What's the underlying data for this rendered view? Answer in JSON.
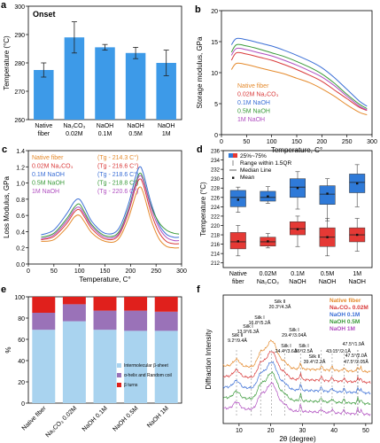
{
  "chart_data": [
    {
      "panel": "a",
      "type": "bar",
      "title": "Onset",
      "ylabel": "Temperature (°C)",
      "ylim": [
        260,
        300
      ],
      "yticks": [
        260,
        270,
        280,
        290,
        300
      ],
      "categories": [
        [
          "Native",
          "fiber"
        ],
        [
          "Na₂CO₃",
          "0.02M"
        ],
        [
          "NaOH",
          "0.1M"
        ],
        [
          "NaOH",
          "0.5M"
        ],
        [
          "NaOH",
          "1M"
        ]
      ],
      "values": [
        277.5,
        289,
        285.5,
        283.5,
        280
      ],
      "errors": [
        2.5,
        5.5,
        1.0,
        2.0,
        4.5
      ],
      "color": "#3d9ae8"
    },
    {
      "panel": "b",
      "type": "line",
      "xlabel": "Temperature, C°",
      "ylabel": "Storage modulus, GPa",
      "xlim": [
        0,
        300
      ],
      "ylim": [
        0,
        20
      ],
      "xticks": [
        0,
        50,
        100,
        150,
        200,
        250,
        300
      ],
      "yticks": [
        0,
        5,
        10,
        15,
        20
      ],
      "legend": [
        "Native fiber",
        "0.02M Na₂CO₃",
        "0.1M NaOH",
        "0.5M NaOH",
        "1M NaOH"
      ],
      "colors": [
        "#e58a2c",
        "#d93a3a",
        "#3b6fd6",
        "#3a9a3a",
        "#b04ec0"
      ],
      "x": [
        20,
        30,
        50,
        75,
        100,
        125,
        150,
        175,
        200,
        225,
        250,
        275,
        290
      ],
      "series": [
        {
          "name": "Native fiber",
          "values": [
            10.5,
            11.5,
            11.3,
            10.8,
            10.3,
            9.8,
            9.1,
            8.4,
            7.4,
            6.2,
            4.8,
            3.6,
            3.2
          ]
        },
        {
          "name": "0.02M Na₂CO₃",
          "values": [
            12.0,
            13.2,
            13.0,
            12.5,
            12.0,
            11.3,
            10.5,
            9.6,
            8.6,
            7.2,
            5.8,
            4.4,
            3.9
          ]
        },
        {
          "name": "0.1M NaOH",
          "values": [
            14.5,
            15.5,
            15.3,
            14.8,
            14.3,
            13.6,
            12.8,
            11.9,
            10.8,
            9.2,
            7.3,
            5.4,
            4.6
          ]
        },
        {
          "name": "0.5M NaOH",
          "values": [
            13.3,
            14.5,
            14.3,
            13.8,
            13.2,
            12.6,
            11.8,
            10.9,
            9.8,
            8.3,
            6.5,
            4.9,
            4.2
          ]
        },
        {
          "name": "1M NaOH",
          "values": [
            12.8,
            13.9,
            13.7,
            13.2,
            12.7,
            12.0,
            11.2,
            10.3,
            9.3,
            7.9,
            6.2,
            4.6,
            4.0
          ]
        }
      ]
    },
    {
      "panel": "c",
      "type": "line",
      "xlabel": "Temperature, C°",
      "ylabel": "Loss Modulus, GPa",
      "xlim": [
        0,
        300
      ],
      "ylim": [
        0,
        1.4
      ],
      "xticks": [
        0,
        50,
        100,
        150,
        200,
        250,
        300
      ],
      "yticks": [
        0.0,
        0.2,
        0.4,
        0.6,
        0.8,
        1.0,
        1.2,
        1.4
      ],
      "legend": [
        {
          "name": "Native fiber",
          "tg": "(Tg - 214.3 C°)"
        },
        {
          "name": "0.02M Na₂CO₃",
          "tg": "(Tg - 216.6 C°)"
        },
        {
          "name": "0.1M NaOH",
          "tg": "(Tg - 218.6 C°)"
        },
        {
          "name": "0.5M NaOH",
          "tg": "(Tg - 218.8 C°)"
        },
        {
          "name": "1M NaOH",
          "tg": "(Tg - 220.6 C°)"
        }
      ],
      "colors": [
        "#e58a2c",
        "#d93a3a",
        "#3b6fd6",
        "#3a9a3a",
        "#b04ec0"
      ],
      "x": [
        25,
        50,
        75,
        90,
        100,
        110,
        125,
        150,
        175,
        195,
        210,
        218,
        225,
        240,
        255,
        270,
        285,
        295
      ],
      "series": [
        {
          "name": "Native fiber",
          "values": [
            0.28,
            0.3,
            0.45,
            0.58,
            0.6,
            0.52,
            0.38,
            0.28,
            0.3,
            0.55,
            0.85,
            0.95,
            0.88,
            0.55,
            0.32,
            0.22,
            0.2,
            0.2
          ]
        },
        {
          "name": "0.02M Na₂CO₃",
          "values": [
            0.3,
            0.34,
            0.5,
            0.64,
            0.67,
            0.58,
            0.43,
            0.31,
            0.34,
            0.62,
            0.95,
            1.05,
            0.98,
            0.64,
            0.4,
            0.28,
            0.25,
            0.25
          ]
        },
        {
          "name": "0.1M NaOH",
          "values": [
            0.36,
            0.42,
            0.62,
            0.77,
            0.8,
            0.7,
            0.52,
            0.38,
            0.42,
            0.72,
            1.08,
            1.2,
            1.12,
            0.76,
            0.5,
            0.37,
            0.33,
            0.33
          ]
        },
        {
          "name": "0.5M NaOH",
          "values": [
            0.33,
            0.38,
            0.56,
            0.7,
            0.74,
            0.64,
            0.48,
            0.35,
            0.38,
            0.66,
            1.0,
            1.12,
            1.05,
            0.72,
            0.52,
            0.42,
            0.38,
            0.37
          ]
        },
        {
          "name": "1M NaOH",
          "values": [
            0.31,
            0.36,
            0.53,
            0.67,
            0.7,
            0.61,
            0.46,
            0.33,
            0.36,
            0.64,
            0.98,
            1.09,
            1.03,
            0.7,
            0.46,
            0.33,
            0.29,
            0.29
          ]
        }
      ]
    },
    {
      "panel": "d",
      "type": "box",
      "ylabel": "Temperature (°C)",
      "ylim": [
        211,
        236
      ],
      "yticks": [
        212,
        214,
        216,
        218,
        220,
        222,
        224,
        226,
        228,
        230,
        232,
        234,
        236
      ],
      "categories": [
        [
          "Native",
          "fiber"
        ],
        [
          "0.02M",
          "Na₂CO₃"
        ],
        [
          "0.1M",
          "NaOH"
        ],
        [
          "0.5M",
          "NaOH"
        ],
        [
          "1M",
          "NaOH"
        ]
      ],
      "legend": [
        "25%~75%",
        "Range within 1.5QR",
        "Median Line",
        "Mean"
      ],
      "series": [
        {
          "name": "blue",
          "color": "#2f7ad8",
          "boxes": [
            {
              "q1": 224.0,
              "median": 226.0,
              "q3": 227.5,
              "min": 222.8,
              "max": 228.2,
              "mean": 225.5
            },
            {
              "q1": 225.2,
              "median": 226.0,
              "q3": 227.3,
              "min": 224.7,
              "max": 228.3,
              "mean": 226.2
            },
            {
              "q1": 226.0,
              "median": 228.2,
              "q3": 230.0,
              "min": 223.5,
              "max": 231.5,
              "mean": 228.0
            },
            {
              "q1": 224.5,
              "median": 226.7,
              "q3": 228.5,
              "min": 221.0,
              "max": 230.0,
              "mean": 226.8
            },
            {
              "q1": 227.0,
              "median": 229.2,
              "q3": 231.0,
              "min": 224.0,
              "max": 233.0,
              "mean": 229.0
            }
          ]
        },
        {
          "name": "red",
          "color": "#e53935",
          "boxes": [
            {
              "q1": 215.0,
              "median": 216.5,
              "q3": 218.5,
              "min": 213.5,
              "max": 220.0,
              "mean": 216.6
            },
            {
              "q1": 215.6,
              "median": 216.5,
              "q3": 217.5,
              "min": 215.2,
              "max": 218.3,
              "mean": 216.6
            },
            {
              "q1": 218.0,
              "median": 219.3,
              "q3": 220.8,
              "min": 215.5,
              "max": 222.0,
              "mean": 219.2
            },
            {
              "q1": 215.5,
              "median": 217.5,
              "q3": 219.5,
              "min": 213.5,
              "max": 221.5,
              "mean": 217.5
            },
            {
              "q1": 216.5,
              "median": 218.0,
              "q3": 219.5,
              "min": 214.5,
              "max": 221.5,
              "mean": 218.0
            }
          ]
        }
      ]
    },
    {
      "panel": "e",
      "type": "bar",
      "stacked": true,
      "ylabel": "%",
      "ylim": [
        0,
        100
      ],
      "yticks": [
        0,
        20,
        40,
        60,
        80,
        100
      ],
      "categories": [
        "Native fiber",
        "Na₂CO₃ 0.02M",
        "NaOH 0.1M",
        "NaOH 0.5M",
        "NaOH 1M"
      ],
      "series": [
        {
          "name": "Intermolecular β-sheet",
          "color": "#a9d3ef",
          "values": [
            69,
            77,
            69,
            68,
            68
          ]
        },
        {
          "name": "α-helix and Random coil",
          "color": "#9a72b8",
          "values": [
            16,
            16,
            18,
            19,
            18
          ]
        },
        {
          "name": "β turns",
          "color": "#e0201c",
          "values": [
            15,
            7,
            13,
            13,
            14
          ]
        }
      ],
      "legend_labels": [
        "Intermolecular β-sheet",
        "α-helix and Random coil",
        "β turns"
      ]
    },
    {
      "panel": "f",
      "type": "line",
      "xlabel": "2θ (degree)",
      "ylabel": "Diffraction Intensity",
      "xlim": [
        5,
        52
      ],
      "xticks": [
        10,
        20,
        30,
        40,
        50
      ],
      "legend": [
        "Native fiber",
        "Na₂CO₃ 0.02M",
        "NaOH 0.1M",
        "NaOH 0.5M",
        "NaOH 1M"
      ],
      "colors": [
        "#e58a2c",
        "#d93a3a",
        "#3b6fd6",
        "#3a9a3a",
        "#b04ec0"
      ],
      "peaks": [
        {
          "label": "Silk II",
          "pos": "20.3°/4.3Å",
          "x": 20.3
        },
        {
          "label": "Silk I",
          "pos": "16.8°/5.2Å",
          "x": 16.8
        },
        {
          "label": "Silk I",
          "pos": "13.9°/6.3Å",
          "x": 13.9
        },
        {
          "label": "Silk II",
          "pos": "9.2°/9.4Å",
          "x": 9.2
        },
        {
          "label": "Silk I",
          "pos": "24.4°/3.6Å",
          "x": 24.4
        },
        {
          "label": "Silk I",
          "pos": "29.4°/3.04Å",
          "x": 29.4
        },
        {
          "label": "Silk I",
          "pos": "36°/2.5Å",
          "x": 36.0
        },
        {
          "label": "Silk II",
          "pos": "39.4°/2.2Å",
          "x": 39.4
        },
        {
          "label": "",
          "pos": "43.15°/2.1Å",
          "x": 43.15
        },
        {
          "label": "",
          "pos": "47.5°/1.9Å",
          "x": 47.5
        },
        {
          "label": "",
          "pos": "47.5°/2.0Å",
          "x": 47.5
        },
        {
          "label": "",
          "pos": "47.5°/2.05Å",
          "x": 47.5
        }
      ]
    }
  ]
}
